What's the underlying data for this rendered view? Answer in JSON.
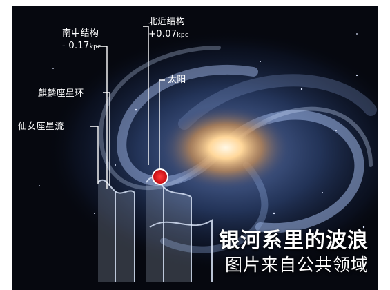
{
  "labels": {
    "south_structure": "南中结构",
    "south_offset": "- 0.17",
    "north_structure": "北近结构",
    "north_offset": "+0.07",
    "unit": "kpc",
    "monoceros_ring": "麒麟座星环",
    "sun": "太阳",
    "andromeda_stream": "仙女座星流"
  },
  "caption": {
    "title": "银河系里的波浪",
    "credit": "图片来自公共领域"
  },
  "colors": {
    "sun_marker": "#e8141c",
    "background": "#06080f",
    "core": "#ffd79a"
  }
}
